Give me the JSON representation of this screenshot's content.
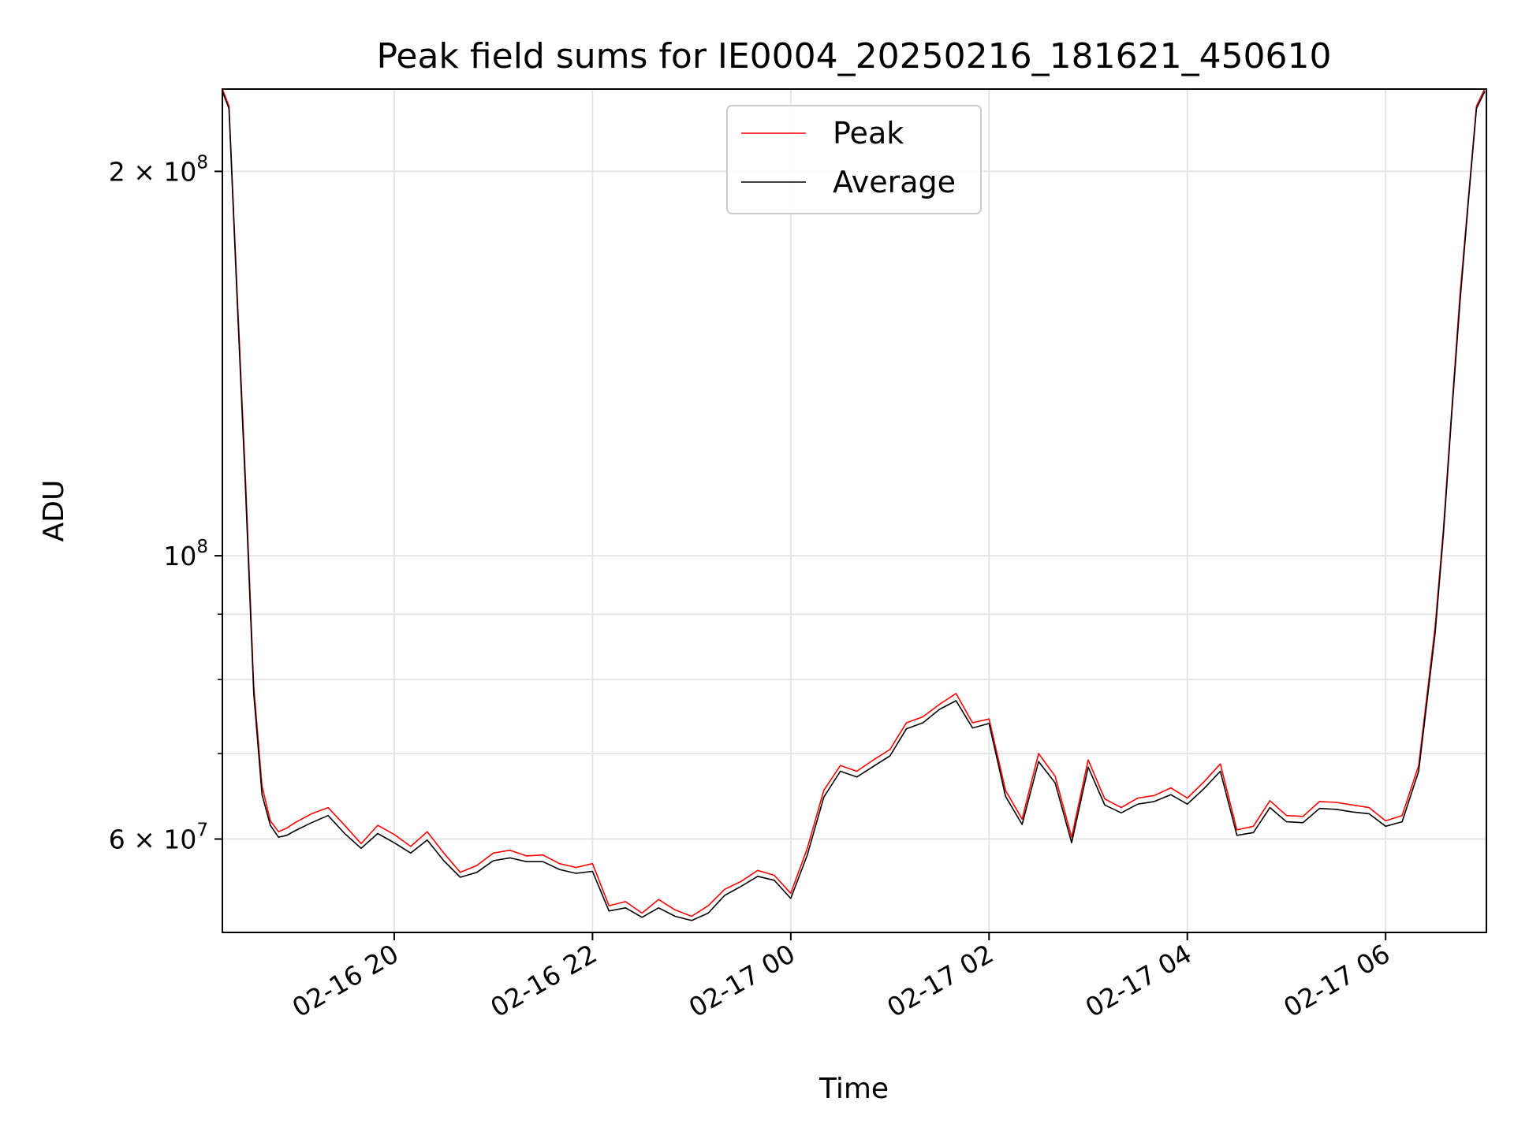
{
  "chart_data": {
    "type": "line",
    "title": "Peak field sums for IE0004_20250216_181621_450610",
    "xlabel": "Time",
    "ylabel": "ADU",
    "xlim": [
      "2025-02-16 18:16",
      "2025-02-17 07:01"
    ],
    "ylim": [
      50700000,
      232000000
    ],
    "yscale": "log",
    "grid": true,
    "legend": "upper center",
    "xticks": [
      {
        "value": "2025-02-16 20:00",
        "label": "02-16 20"
      },
      {
        "value": "2025-02-16 22:00",
        "label": "02-16 22"
      },
      {
        "value": "2025-02-17 00:00",
        "label": "02-17 00"
      },
      {
        "value": "2025-02-17 02:00",
        "label": "02-17 02"
      },
      {
        "value": "2025-02-17 04:00",
        "label": "02-17 04"
      },
      {
        "value": "2025-02-17 06:00",
        "label": "02-17 06"
      }
    ],
    "yticks_major": [
      {
        "value": 60000000,
        "label": "6 × 10",
        "exp": "7"
      },
      {
        "value": 100000000,
        "label": "10",
        "exp": "8"
      },
      {
        "value": 200000000,
        "label": "2 × 10",
        "exp": "8"
      }
    ],
    "yticks_minor": [
      70000000,
      80000000,
      90000000
    ],
    "series": [
      {
        "name": "Peak",
        "color": "#ff0000",
        "x": [
          "2025-02-16 18:16",
          "2025-02-16 18:20",
          "2025-02-16 18:25",
          "2025-02-16 18:30",
          "2025-02-16 18:35",
          "2025-02-16 18:40",
          "2025-02-16 18:45",
          "2025-02-16 18:50",
          "2025-02-16 18:55",
          "2025-02-16 19:00",
          "2025-02-16 19:10",
          "2025-02-16 19:20",
          "2025-02-16 19:30",
          "2025-02-16 19:40",
          "2025-02-16 19:50",
          "2025-02-16 20:00",
          "2025-02-16 20:10",
          "2025-02-16 20:20",
          "2025-02-16 20:30",
          "2025-02-16 20:40",
          "2025-02-16 20:50",
          "2025-02-16 21:00",
          "2025-02-16 21:10",
          "2025-02-16 21:20",
          "2025-02-16 21:30",
          "2025-02-16 21:40",
          "2025-02-16 21:50",
          "2025-02-16 22:00",
          "2025-02-16 22:10",
          "2025-02-16 22:20",
          "2025-02-16 22:30",
          "2025-02-16 22:40",
          "2025-02-16 22:50",
          "2025-02-16 23:00",
          "2025-02-16 23:10",
          "2025-02-16 23:20",
          "2025-02-16 23:30",
          "2025-02-16 23:40",
          "2025-02-16 23:50",
          "2025-02-17 00:00",
          "2025-02-17 00:10",
          "2025-02-17 00:20",
          "2025-02-17 00:30",
          "2025-02-17 00:40",
          "2025-02-17 00:50",
          "2025-02-17 01:00",
          "2025-02-17 01:10",
          "2025-02-17 01:20",
          "2025-02-17 01:30",
          "2025-02-17 01:40",
          "2025-02-17 01:50",
          "2025-02-17 02:00",
          "2025-02-17 02:10",
          "2025-02-17 02:20",
          "2025-02-17 02:30",
          "2025-02-17 02:40",
          "2025-02-17 02:50",
          "2025-02-17 03:00",
          "2025-02-17 03:10",
          "2025-02-17 03:20",
          "2025-02-17 03:30",
          "2025-02-17 03:40",
          "2025-02-17 03:50",
          "2025-02-17 04:00",
          "2025-02-17 04:10",
          "2025-02-17 04:20",
          "2025-02-17 04:30",
          "2025-02-17 04:40",
          "2025-02-17 04:50",
          "2025-02-17 05:00",
          "2025-02-17 05:10",
          "2025-02-17 05:20",
          "2025-02-17 05:30",
          "2025-02-17 05:40",
          "2025-02-17 05:50",
          "2025-02-17 06:00",
          "2025-02-17 06:10",
          "2025-02-17 06:20",
          "2025-02-17 06:30",
          "2025-02-17 06:35",
          "2025-02-17 06:40",
          "2025-02-17 06:45",
          "2025-02-17 06:50",
          "2025-02-17 06:55",
          "2025-02-17 07:00"
        ],
        "y": [
          232000000,
          225000000,
          160000000,
          115000000,
          79000000,
          66000000,
          62000000,
          60800000,
          61200000,
          61800000,
          62800000,
          63500000,
          61500000,
          59500000,
          61500000,
          60500000,
          59200000,
          60800000,
          58500000,
          56500000,
          57200000,
          58500000,
          58800000,
          58200000,
          58300000,
          57400000,
          57000000,
          57400000,
          53200000,
          53600000,
          52500000,
          53800000,
          52800000,
          52200000,
          53200000,
          54800000,
          55600000,
          56700000,
          56200000,
          54400000,
          59000000,
          65500000,
          68500000,
          67800000,
          69200000,
          70500000,
          74000000,
          74800000,
          76500000,
          78000000,
          74000000,
          74500000,
          65500000,
          62200000,
          70000000,
          67200000,
          60200000,
          69200000,
          64500000,
          63500000,
          64600000,
          64900000,
          65800000,
          64600000,
          66500000,
          68700000,
          61000000,
          61400000,
          64300000,
          62600000,
          62500000,
          64200000,
          64100000,
          63800000,
          63500000,
          62000000,
          62600000,
          68500000,
          88000000,
          105000000,
          130000000,
          160000000,
          190000000,
          225000000,
          232000000
        ]
      },
      {
        "name": "Average",
        "color": "#000000",
        "x": [
          "2025-02-16 18:16",
          "2025-02-16 18:20",
          "2025-02-16 18:25",
          "2025-02-16 18:30",
          "2025-02-16 18:35",
          "2025-02-16 18:40",
          "2025-02-16 18:45",
          "2025-02-16 18:50",
          "2025-02-16 18:55",
          "2025-02-16 19:00",
          "2025-02-16 19:10",
          "2025-02-16 19:20",
          "2025-02-16 19:30",
          "2025-02-16 19:40",
          "2025-02-16 19:50",
          "2025-02-16 20:00",
          "2025-02-16 20:10",
          "2025-02-16 20:20",
          "2025-02-16 20:30",
          "2025-02-16 20:40",
          "2025-02-16 20:50",
          "2025-02-16 21:00",
          "2025-02-16 21:10",
          "2025-02-16 21:20",
          "2025-02-16 21:30",
          "2025-02-16 21:40",
          "2025-02-16 21:50",
          "2025-02-16 22:00",
          "2025-02-16 22:10",
          "2025-02-16 22:20",
          "2025-02-16 22:30",
          "2025-02-16 22:40",
          "2025-02-16 22:50",
          "2025-02-16 23:00",
          "2025-02-16 23:10",
          "2025-02-16 23:20",
          "2025-02-16 23:30",
          "2025-02-16 23:40",
          "2025-02-16 23:50",
          "2025-02-17 00:00",
          "2025-02-17 00:10",
          "2025-02-17 00:20",
          "2025-02-17 00:30",
          "2025-02-17 00:40",
          "2025-02-17 00:50",
          "2025-02-17 01:00",
          "2025-02-17 01:10",
          "2025-02-17 01:20",
          "2025-02-17 01:30",
          "2025-02-17 01:40",
          "2025-02-17 01:50",
          "2025-02-17 02:00",
          "2025-02-17 02:10",
          "2025-02-17 02:20",
          "2025-02-17 02:30",
          "2025-02-17 02:40",
          "2025-02-17 02:50",
          "2025-02-17 03:00",
          "2025-02-17 03:10",
          "2025-02-17 03:20",
          "2025-02-17 03:30",
          "2025-02-17 03:40",
          "2025-02-17 03:50",
          "2025-02-17 04:00",
          "2025-02-17 04:10",
          "2025-02-17 04:20",
          "2025-02-17 04:30",
          "2025-02-17 04:40",
          "2025-02-17 04:50",
          "2025-02-17 05:00",
          "2025-02-17 05:10",
          "2025-02-17 05:20",
          "2025-02-17 05:30",
          "2025-02-17 05:40",
          "2025-02-17 05:50",
          "2025-02-17 06:00",
          "2025-02-17 06:10",
          "2025-02-17 06:20",
          "2025-02-17 06:30",
          "2025-02-17 06:35",
          "2025-02-17 06:40",
          "2025-02-17 06:45",
          "2025-02-17 06:50",
          "2025-02-17 06:55",
          "2025-02-17 07:00"
        ],
        "y": [
          231000000,
          224000000,
          158000000,
          113000000,
          78000000,
          65000000,
          61500000,
          60200000,
          60400000,
          60900000,
          61800000,
          62600000,
          60600000,
          59000000,
          60600000,
          59600000,
          58500000,
          59900000,
          57700000,
          56000000,
          56500000,
          57700000,
          58000000,
          57600000,
          57600000,
          56800000,
          56400000,
          56600000,
          52700000,
          53000000,
          52100000,
          53000000,
          52200000,
          51800000,
          52500000,
          54200000,
          55100000,
          56100000,
          55700000,
          53900000,
          58300000,
          64700000,
          67800000,
          67100000,
          68400000,
          69700000,
          73200000,
          74000000,
          75800000,
          77000000,
          73300000,
          73900000,
          64800000,
          61600000,
          69000000,
          66400000,
          59600000,
          68300000,
          63800000,
          62900000,
          63900000,
          64200000,
          65000000,
          63900000,
          65700000,
          67800000,
          60400000,
          60700000,
          63500000,
          61900000,
          61800000,
          63400000,
          63300000,
          63000000,
          62800000,
          61400000,
          61900000,
          67800000,
          87000000,
          104000000,
          129000000,
          158000000,
          189000000,
          224000000,
          231000000
        ]
      }
    ]
  }
}
